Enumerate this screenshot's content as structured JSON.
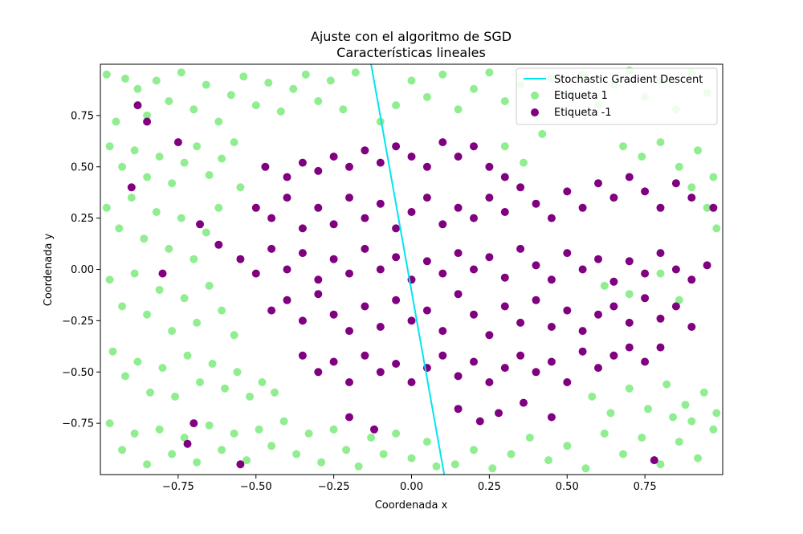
{
  "chart_data": {
    "type": "scatter",
    "title": "Ajuste con el algoritmo de SGD",
    "subtitle": "Características lineales",
    "xlabel": "Coordenada x",
    "ylabel": "Coordenada y",
    "xlim": [
      -1.0,
      1.0
    ],
    "ylim": [
      -1.0,
      1.0
    ],
    "x_ticks": [
      -0.75,
      -0.5,
      -0.25,
      0.0,
      0.25,
      0.5,
      0.75
    ],
    "x_tick_labels": [
      "−0.75",
      "−0.50",
      "−0.25",
      "0.00",
      "0.25",
      "0.50",
      "0.75"
    ],
    "y_ticks": [
      -0.75,
      -0.5,
      -0.25,
      0.0,
      0.25,
      0.5,
      0.75
    ],
    "y_tick_labels": [
      "−0.75",
      "−0.50",
      "−0.25",
      "0.00",
      "0.25",
      "0.50",
      "0.75"
    ],
    "grid": false,
    "legend_position": "top-right",
    "line": {
      "name": "Stochastic Gradient Descent",
      "color": "#00e5ee",
      "points": [
        [
          -0.13,
          1.0
        ],
        [
          0.105,
          -1.0
        ]
      ]
    },
    "series": [
      {
        "name": "Etiqueta 1",
        "color": "#90ee90",
        "points": [
          [
            -0.98,
            0.95
          ],
          [
            -0.95,
            0.72
          ],
          [
            -0.92,
            0.93
          ],
          [
            -0.88,
            0.88
          ],
          [
            -0.85,
            0.75
          ],
          [
            -0.82,
            0.92
          ],
          [
            -0.78,
            0.82
          ],
          [
            -0.74,
            0.96
          ],
          [
            -0.7,
            0.78
          ],
          [
            -0.66,
            0.9
          ],
          [
            -0.62,
            0.72
          ],
          [
            -0.58,
            0.85
          ],
          [
            -0.54,
            0.94
          ],
          [
            -0.5,
            0.8
          ],
          [
            -0.46,
            0.91
          ],
          [
            -0.42,
            0.77
          ],
          [
            -0.38,
            0.88
          ],
          [
            -0.34,
            0.95
          ],
          [
            -0.3,
            0.82
          ],
          [
            -0.26,
            0.92
          ],
          [
            -0.22,
            0.78
          ],
          [
            -0.18,
            0.96
          ],
          [
            -0.97,
            0.6
          ],
          [
            -0.93,
            0.5
          ],
          [
            -0.89,
            0.58
          ],
          [
            -0.85,
            0.45
          ],
          [
            -0.81,
            0.55
          ],
          [
            -0.77,
            0.42
          ],
          [
            -0.73,
            0.52
          ],
          [
            -0.69,
            0.6
          ],
          [
            -0.65,
            0.46
          ],
          [
            -0.61,
            0.54
          ],
          [
            -0.57,
            0.62
          ],
          [
            -0.55,
            0.4
          ],
          [
            -0.98,
            0.3
          ],
          [
            -0.94,
            0.2
          ],
          [
            -0.9,
            0.35
          ],
          [
            -0.86,
            0.15
          ],
          [
            -0.82,
            0.28
          ],
          [
            -0.78,
            0.1
          ],
          [
            -0.74,
            0.25
          ],
          [
            -0.7,
            0.05
          ],
          [
            -0.66,
            0.18
          ],
          [
            -0.62,
            0.3
          ],
          [
            -0.97,
            -0.05
          ],
          [
            -0.93,
            -0.18
          ],
          [
            -0.89,
            -0.02
          ],
          [
            -0.85,
            -0.22
          ],
          [
            -0.81,
            -0.1
          ],
          [
            -0.77,
            -0.3
          ],
          [
            -0.73,
            -0.14
          ],
          [
            -0.69,
            -0.26
          ],
          [
            -0.65,
            -0.08
          ],
          [
            -0.61,
            -0.2
          ],
          [
            -0.57,
            -0.32
          ],
          [
            -0.96,
            -0.4
          ],
          [
            -0.92,
            -0.52
          ],
          [
            -0.88,
            -0.45
          ],
          [
            -0.84,
            -0.6
          ],
          [
            -0.8,
            -0.48
          ],
          [
            -0.76,
            -0.62
          ],
          [
            -0.72,
            -0.42
          ],
          [
            -0.68,
            -0.55
          ],
          [
            -0.64,
            -0.46
          ],
          [
            -0.6,
            -0.58
          ],
          [
            -0.56,
            -0.5
          ],
          [
            -0.52,
            -0.62
          ],
          [
            -0.48,
            -0.55
          ],
          [
            -0.44,
            -0.6
          ],
          [
            -0.97,
            -0.75
          ],
          [
            -0.93,
            -0.88
          ],
          [
            -0.89,
            -0.8
          ],
          [
            -0.85,
            -0.95
          ],
          [
            -0.81,
            -0.78
          ],
          [
            -0.77,
            -0.9
          ],
          [
            -0.73,
            -0.82
          ],
          [
            -0.69,
            -0.94
          ],
          [
            -0.65,
            -0.76
          ],
          [
            -0.61,
            -0.88
          ],
          [
            -0.57,
            -0.8
          ],
          [
            -0.53,
            -0.93
          ],
          [
            -0.49,
            -0.78
          ],
          [
            -0.45,
            -0.86
          ],
          [
            -0.41,
            -0.74
          ],
          [
            -0.37,
            -0.9
          ],
          [
            -0.33,
            -0.8
          ],
          [
            -0.29,
            -0.94
          ],
          [
            -0.25,
            -0.78
          ],
          [
            -0.21,
            -0.88
          ],
          [
            -0.17,
            -0.96
          ],
          [
            -0.13,
            -0.82
          ],
          [
            -0.09,
            -0.9
          ],
          [
            -0.05,
            -0.8
          ],
          [
            0.0,
            -0.92
          ],
          [
            0.05,
            -0.84
          ],
          [
            0.08,
            -0.96
          ],
          [
            0.14,
            -0.95
          ],
          [
            0.2,
            -0.88
          ],
          [
            0.26,
            -0.97
          ],
          [
            0.32,
            -0.9
          ],
          [
            0.38,
            -0.82
          ],
          [
            0.44,
            -0.93
          ],
          [
            0.5,
            -0.86
          ],
          [
            0.56,
            -0.97
          ],
          [
            0.62,
            -0.8
          ],
          [
            0.68,
            -0.9
          ],
          [
            0.74,
            -0.82
          ],
          [
            0.8,
            -0.95
          ],
          [
            0.86,
            -0.84
          ],
          [
            0.92,
            -0.92
          ],
          [
            0.97,
            -0.78
          ],
          [
            0.58,
            -0.62
          ],
          [
            0.64,
            -0.7
          ],
          [
            0.7,
            -0.58
          ],
          [
            0.76,
            -0.68
          ],
          [
            0.82,
            -0.56
          ],
          [
            0.88,
            -0.66
          ],
          [
            0.94,
            -0.6
          ],
          [
            0.98,
            -0.7
          ],
          [
            0.9,
            -0.74
          ],
          [
            0.84,
            -0.72
          ],
          [
            -0.1,
            0.72
          ],
          [
            -0.05,
            0.8
          ],
          [
            0.0,
            0.92
          ],
          [
            0.05,
            0.84
          ],
          [
            0.1,
            0.95
          ],
          [
            0.15,
            0.78
          ],
          [
            0.2,
            0.88
          ],
          [
            0.25,
            0.96
          ],
          [
            0.3,
            0.82
          ],
          [
            0.35,
            0.9
          ],
          [
            0.4,
            0.75
          ],
          [
            0.45,
            0.93
          ],
          [
            0.5,
            0.85
          ],
          [
            0.55,
            0.95
          ],
          [
            0.6,
            0.8
          ],
          [
            0.65,
            0.9
          ],
          [
            0.7,
            0.97
          ],
          [
            0.75,
            0.84
          ],
          [
            0.8,
            0.92
          ],
          [
            0.85,
            0.78
          ],
          [
            0.9,
            0.96
          ],
          [
            0.95,
            0.86
          ],
          [
            0.3,
            0.6
          ],
          [
            0.36,
            0.52
          ],
          [
            0.42,
            0.66
          ],
          [
            0.68,
            0.6
          ],
          [
            0.74,
            0.55
          ],
          [
            0.8,
            0.62
          ],
          [
            0.86,
            0.5
          ],
          [
            0.92,
            0.58
          ],
          [
            0.97,
            0.45
          ],
          [
            0.9,
            0.4
          ],
          [
            0.95,
            0.3
          ],
          [
            0.98,
            0.2
          ],
          [
            0.62,
            -0.08
          ],
          [
            0.7,
            -0.12
          ],
          [
            0.8,
            -0.02
          ],
          [
            0.86,
            -0.15
          ]
        ]
      },
      {
        "name": "Etiqueta -1",
        "color": "#800080",
        "points": [
          [
            -0.47,
            0.5
          ],
          [
            -0.4,
            0.45
          ],
          [
            -0.35,
            0.52
          ],
          [
            -0.3,
            0.48
          ],
          [
            -0.25,
            0.55
          ],
          [
            -0.2,
            0.5
          ],
          [
            -0.15,
            0.58
          ],
          [
            -0.1,
            0.52
          ],
          [
            -0.05,
            0.6
          ],
          [
            0.0,
            0.55
          ],
          [
            0.05,
            0.5
          ],
          [
            0.1,
            0.62
          ],
          [
            0.15,
            0.55
          ],
          [
            0.2,
            0.6
          ],
          [
            0.25,
            0.5
          ],
          [
            0.3,
            0.45
          ],
          [
            -0.5,
            0.3
          ],
          [
            -0.45,
            0.25
          ],
          [
            -0.4,
            0.35
          ],
          [
            -0.35,
            0.2
          ],
          [
            -0.3,
            0.3
          ],
          [
            -0.25,
            0.22
          ],
          [
            -0.2,
            0.35
          ],
          [
            -0.15,
            0.25
          ],
          [
            -0.1,
            0.32
          ],
          [
            -0.05,
            0.2
          ],
          [
            0.0,
            0.28
          ],
          [
            0.05,
            0.35
          ],
          [
            0.1,
            0.22
          ],
          [
            0.15,
            0.3
          ],
          [
            0.2,
            0.25
          ],
          [
            0.25,
            0.35
          ],
          [
            0.3,
            0.28
          ],
          [
            0.35,
            0.4
          ],
          [
            0.4,
            0.32
          ],
          [
            0.45,
            0.25
          ],
          [
            0.5,
            0.38
          ],
          [
            0.55,
            0.3
          ],
          [
            0.6,
            0.42
          ],
          [
            0.65,
            0.35
          ],
          [
            0.7,
            0.45
          ],
          [
            0.75,
            0.38
          ],
          [
            0.8,
            0.3
          ],
          [
            0.85,
            0.42
          ],
          [
            0.9,
            0.35
          ],
          [
            -0.55,
            0.05
          ],
          [
            -0.5,
            -0.02
          ],
          [
            -0.45,
            0.1
          ],
          [
            -0.4,
            0.0
          ],
          [
            -0.35,
            0.08
          ],
          [
            -0.3,
            -0.05
          ],
          [
            -0.25,
            0.05
          ],
          [
            -0.2,
            -0.02
          ],
          [
            -0.15,
            0.1
          ],
          [
            -0.1,
            0.0
          ],
          [
            -0.05,
            0.06
          ],
          [
            0.0,
            -0.05
          ],
          [
            0.05,
            0.04
          ],
          [
            0.1,
            -0.02
          ],
          [
            0.15,
            0.08
          ],
          [
            0.2,
            0.0
          ],
          [
            0.25,
            0.06
          ],
          [
            0.3,
            -0.04
          ],
          [
            0.35,
            0.1
          ],
          [
            0.4,
            0.02
          ],
          [
            0.45,
            -0.05
          ],
          [
            0.5,
            0.08
          ],
          [
            0.55,
            0.0
          ],
          [
            0.6,
            0.05
          ],
          [
            0.65,
            -0.06
          ],
          [
            0.7,
            0.04
          ],
          [
            0.75,
            -0.02
          ],
          [
            0.8,
            0.08
          ],
          [
            0.85,
            0.0
          ],
          [
            0.9,
            -0.05
          ],
          [
            0.95,
            0.02
          ],
          [
            -0.45,
            -0.2
          ],
          [
            -0.4,
            -0.15
          ],
          [
            -0.35,
            -0.25
          ],
          [
            -0.3,
            -0.12
          ],
          [
            -0.25,
            -0.22
          ],
          [
            -0.2,
            -0.3
          ],
          [
            -0.15,
            -0.18
          ],
          [
            -0.1,
            -0.28
          ],
          [
            -0.05,
            -0.15
          ],
          [
            0.0,
            -0.25
          ],
          [
            0.05,
            -0.2
          ],
          [
            0.1,
            -0.3
          ],
          [
            0.15,
            -0.12
          ],
          [
            0.2,
            -0.22
          ],
          [
            0.25,
            -0.32
          ],
          [
            0.3,
            -0.18
          ],
          [
            0.35,
            -0.26
          ],
          [
            0.4,
            -0.15
          ],
          [
            0.45,
            -0.28
          ],
          [
            0.5,
            -0.2
          ],
          [
            0.55,
            -0.3
          ],
          [
            0.6,
            -0.22
          ],
          [
            0.65,
            -0.18
          ],
          [
            0.7,
            -0.26
          ],
          [
            0.75,
            -0.14
          ],
          [
            0.8,
            -0.24
          ],
          [
            0.85,
            -0.18
          ],
          [
            0.9,
            -0.28
          ],
          [
            -0.35,
            -0.42
          ],
          [
            -0.3,
            -0.5
          ],
          [
            -0.25,
            -0.45
          ],
          [
            -0.2,
            -0.55
          ],
          [
            -0.15,
            -0.42
          ],
          [
            -0.1,
            -0.5
          ],
          [
            -0.05,
            -0.46
          ],
          [
            0.0,
            -0.55
          ],
          [
            0.05,
            -0.48
          ],
          [
            0.1,
            -0.42
          ],
          [
            0.15,
            -0.52
          ],
          [
            0.2,
            -0.45
          ],
          [
            0.25,
            -0.55
          ],
          [
            0.3,
            -0.48
          ],
          [
            0.35,
            -0.42
          ],
          [
            0.4,
            -0.5
          ],
          [
            0.45,
            -0.45
          ],
          [
            0.5,
            -0.55
          ],
          [
            0.55,
            -0.4
          ],
          [
            0.6,
            -0.48
          ],
          [
            0.65,
            -0.42
          ],
          [
            0.7,
            -0.38
          ],
          [
            0.75,
            -0.45
          ],
          [
            0.8,
            -0.38
          ],
          [
            -0.2,
            -0.72
          ],
          [
            -0.12,
            -0.78
          ],
          [
            0.15,
            -0.68
          ],
          [
            0.22,
            -0.74
          ],
          [
            0.28,
            -0.7
          ],
          [
            0.36,
            -0.65
          ],
          [
            0.45,
            -0.72
          ],
          [
            -0.7,
            -0.75
          ],
          [
            -0.72,
            -0.85
          ],
          [
            -0.55,
            -0.95
          ],
          [
            0.78,
            -0.93
          ],
          [
            -0.9,
            0.4
          ],
          [
            -0.85,
            0.72
          ],
          [
            -0.88,
            0.8
          ],
          [
            -0.75,
            0.62
          ],
          [
            -0.68,
            0.22
          ],
          [
            -0.62,
            0.12
          ],
          [
            -0.8,
            -0.02
          ],
          [
            0.97,
            0.3
          ]
        ]
      }
    ]
  }
}
